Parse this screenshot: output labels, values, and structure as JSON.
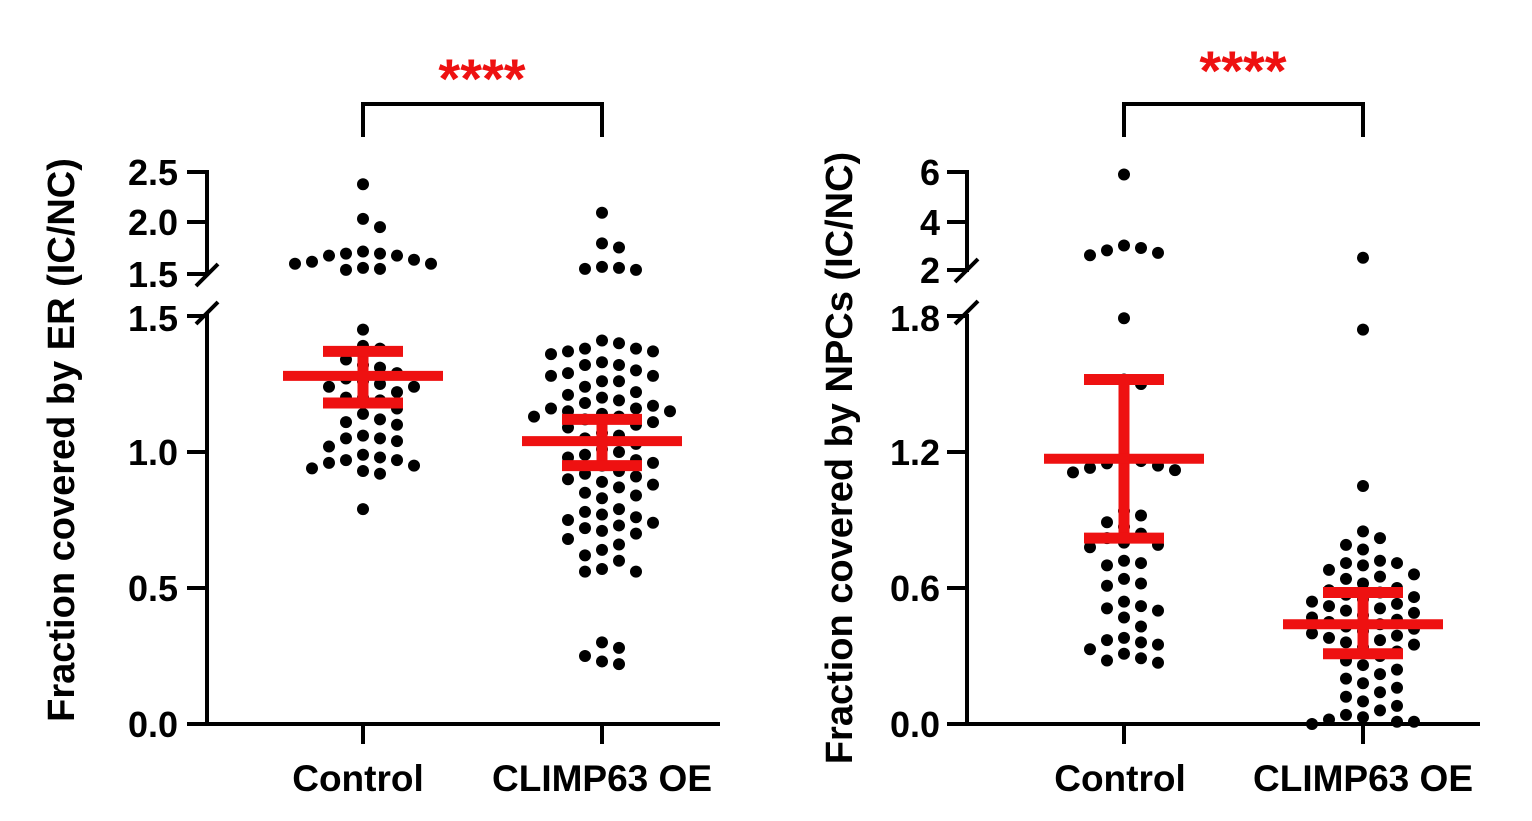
{
  "chart_data": [
    {
      "type": "scatter",
      "categories": [
        "Control",
        "CLIMP63 OE"
      ],
      "ylabel": "Fraction covered by ER (IC/NC)",
      "yticks_lower": [
        "0.0",
        "0.5",
        "1.0",
        "1.5"
      ],
      "yticks_upper": [
        "1.5",
        "2.0",
        "2.5"
      ],
      "y_broken_axis": {
        "lower_range": [
          0,
          1.5
        ],
        "upper_range": [
          1.5,
          2.5
        ]
      },
      "significance": "****",
      "series": [
        {
          "category": "Control",
          "mean": 1.28,
          "error_low": 1.18,
          "error_high": 1.37,
          "values": [
            2.38,
            2.04,
            1.96,
            1.72,
            1.7,
            1.7,
            1.68,
            1.68,
            1.64,
            1.62,
            1.6,
            1.6,
            1.56,
            1.55,
            1.54,
            1.45,
            1.39,
            1.38,
            1.34,
            1.32,
            1.31,
            1.29,
            1.27,
            1.26,
            1.25,
            1.24,
            1.24,
            1.22,
            1.2,
            1.2,
            1.19,
            1.16,
            1.14,
            1.12,
            1.11,
            1.1,
            1.06,
            1.05,
            1.05,
            1.04,
            1.02,
            0.99,
            0.98,
            0.97,
            0.97,
            0.96,
            0.95,
            0.94,
            0.93,
            0.92,
            0.79
          ]
        },
        {
          "category": "CLIMP63 OE",
          "mean": 1.04,
          "error_low": 0.95,
          "error_high": 1.12,
          "values": [
            2.1,
            1.8,
            1.76,
            1.57,
            1.56,
            1.55,
            1.54,
            1.41,
            1.4,
            1.38,
            1.38,
            1.37,
            1.37,
            1.36,
            1.33,
            1.32,
            1.32,
            1.3,
            1.29,
            1.28,
            1.28,
            1.26,
            1.26,
            1.24,
            1.22,
            1.21,
            1.2,
            1.19,
            1.18,
            1.17,
            1.16,
            1.16,
            1.15,
            1.15,
            1.14,
            1.13,
            1.13,
            1.12,
            1.11,
            1.1,
            1.09,
            1.07,
            1.06,
            1.05,
            1.03,
            1.01,
            1.0,
            0.99,
            0.98,
            0.97,
            0.96,
            0.95,
            0.93,
            0.92,
            0.91,
            0.9,
            0.89,
            0.88,
            0.87,
            0.85,
            0.84,
            0.83,
            0.79,
            0.78,
            0.77,
            0.76,
            0.75,
            0.74,
            0.73,
            0.72,
            0.71,
            0.7,
            0.68,
            0.66,
            0.64,
            0.62,
            0.6,
            0.57,
            0.56,
            0.56,
            0.3,
            0.28,
            0.25,
            0.23,
            0.22
          ]
        }
      ]
    },
    {
      "type": "scatter",
      "categories": [
        "Control",
        "CLIMP63 OE"
      ],
      "ylabel": "Fraction covered by NPCs (IC/NC)",
      "yticks_lower": [
        "0.0",
        "0.6",
        "1.2",
        "1.8"
      ],
      "yticks_upper": [
        "2",
        "4",
        "6"
      ],
      "y_broken_axis": {
        "lower_range": [
          0,
          1.8
        ],
        "upper_range": [
          2,
          6
        ]
      },
      "significance": "****",
      "series": [
        {
          "category": "Control",
          "mean": 1.17,
          "error_low": 0.82,
          "error_high": 1.52,
          "values": [
            5.9,
            3.0,
            2.9,
            2.8,
            2.7,
            2.6,
            1.79,
            1.52,
            1.5,
            1.16,
            1.16,
            1.15,
            1.14,
            1.13,
            1.12,
            1.11,
            0.94,
            0.92,
            0.89,
            0.87,
            0.84,
            0.82,
            0.8,
            0.79,
            0.78,
            0.72,
            0.71,
            0.7,
            0.64,
            0.62,
            0.61,
            0.54,
            0.52,
            0.51,
            0.5,
            0.47,
            0.43,
            0.38,
            0.37,
            0.36,
            0.35,
            0.33,
            0.31,
            0.29,
            0.28,
            0.27
          ]
        },
        {
          "category": "CLIMP63 OE",
          "mean": 0.44,
          "error_low": 0.31,
          "error_high": 0.58,
          "values": [
            2.5,
            1.74,
            1.05,
            0.85,
            0.82,
            0.79,
            0.77,
            0.72,
            0.71,
            0.71,
            0.7,
            0.68,
            0.66,
            0.65,
            0.64,
            0.62,
            0.6,
            0.59,
            0.58,
            0.57,
            0.56,
            0.55,
            0.54,
            0.53,
            0.52,
            0.51,
            0.5,
            0.49,
            0.48,
            0.47,
            0.46,
            0.45,
            0.44,
            0.43,
            0.42,
            0.41,
            0.4,
            0.39,
            0.38,
            0.37,
            0.36,
            0.35,
            0.34,
            0.32,
            0.3,
            0.28,
            0.26,
            0.24,
            0.22,
            0.2,
            0.18,
            0.16,
            0.14,
            0.12,
            0.1,
            0.08,
            0.06,
            0.04,
            0.03,
            0.02,
            0.01,
            0.01,
            0.0
          ]
        }
      ]
    }
  ]
}
